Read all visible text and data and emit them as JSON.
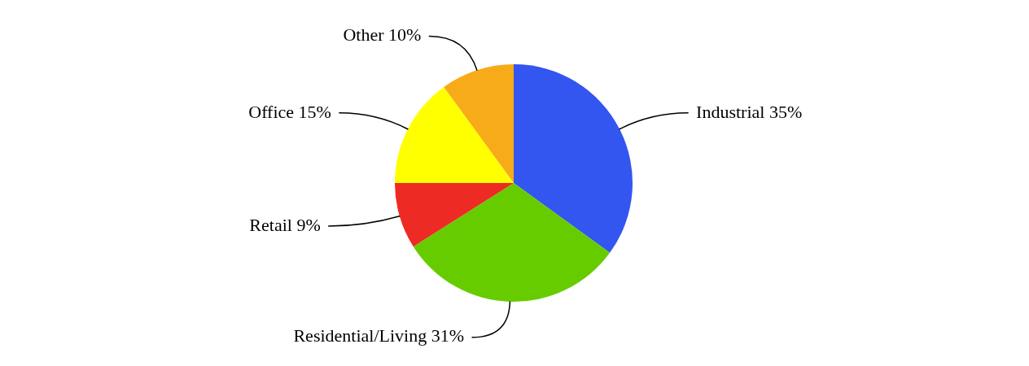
{
  "chart_data": {
    "type": "pie",
    "categories": [
      "Industrial",
      "Residential/Living",
      "Retail",
      "Office",
      "Other"
    ],
    "values": [
      35,
      31,
      9,
      15,
      10
    ],
    "colors": [
      "#3355f0",
      "#66cc00",
      "#ee2a24",
      "#ffff00",
      "#f8ab18"
    ],
    "value_labels": [
      "35%",
      "31%",
      "9%",
      "15%",
      "10%"
    ]
  }
}
